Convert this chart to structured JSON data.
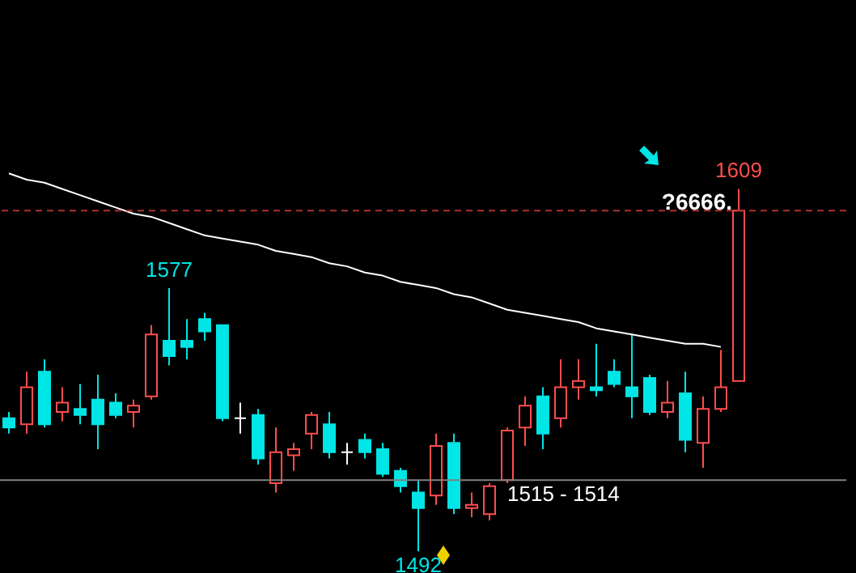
{
  "chart_data": {
    "type": "candlestick",
    "categories": [
      null,
      null,
      null,
      null,
      null,
      null,
      null,
      null,
      null,
      null,
      null,
      null,
      null,
      null,
      null,
      null,
      null,
      null,
      null,
      null,
      null,
      null,
      null,
      null,
      null,
      null,
      null,
      null,
      null,
      null,
      null,
      null,
      null,
      null,
      null,
      null,
      null,
      null,
      null,
      null,
      null,
      null
    ],
    "ohlc": [
      [
        1535,
        1537,
        1530,
        1532
      ],
      [
        1533,
        1550,
        1530,
        1545
      ],
      [
        1550,
        1554,
        1532,
        1533
      ],
      [
        1537,
        1545,
        1534,
        1540
      ],
      [
        1538,
        1546,
        1533,
        1536
      ],
      [
        1541,
        1549,
        1525,
        1533
      ],
      [
        1540,
        1543,
        1535,
        1536
      ],
      [
        1537,
        1541,
        1532,
        1539
      ],
      [
        1542,
        1565,
        1541,
        1562
      ],
      [
        1560,
        1577,
        1552,
        1555
      ],
      [
        1560,
        1567,
        1554,
        1558
      ],
      [
        1567,
        1569,
        1560,
        1563
      ],
      [
        1565,
        1565,
        1534,
        1535
      ],
      [
        1535,
        1540,
        1530,
        1535
      ],
      [
        1536,
        1538,
        1520,
        1522
      ],
      [
        1514,
        1532,
        1511,
        1524
      ],
      [
        1523,
        1527,
        1518,
        1525
      ],
      [
        1530,
        1537,
        1525,
        1536
      ],
      [
        1533,
        1537,
        1522,
        1524
      ],
      [
        1524,
        1527,
        1520,
        1524
      ],
      [
        1528,
        1530,
        1522,
        1524
      ],
      [
        1525,
        1527,
        1516,
        1517
      ],
      [
        1518,
        1519,
        1511,
        1513
      ],
      [
        1511,
        1515,
        1492,
        1506
      ],
      [
        1510,
        1530,
        1507,
        1526
      ],
      [
        1527,
        1530,
        1504,
        1506
      ],
      [
        1506,
        1511,
        1503,
        1507
      ],
      [
        1504,
        1514,
        1502,
        1513
      ],
      [
        1515,
        1532,
        1514,
        1531
      ],
      [
        1532,
        1542,
        1526,
        1539
      ],
      [
        1542,
        1545,
        1525,
        1530
      ],
      [
        1535,
        1554,
        1532,
        1545
      ],
      [
        1545,
        1554,
        1541,
        1547
      ],
      [
        1545,
        1559,
        1542,
        1544
      ],
      [
        1550,
        1554,
        1545,
        1546
      ],
      [
        1545,
        1562,
        1535,
        1542
      ],
      [
        1548,
        1549,
        1536,
        1537
      ],
      [
        1537,
        1547,
        1535,
        1540
      ],
      [
        1543,
        1550,
        1524,
        1528
      ],
      [
        1527,
        1542,
        1519,
        1538
      ],
      [
        1538,
        1557,
        1537,
        1545
      ],
      [
        1547,
        1609,
        1547,
        1602
      ]
    ],
    "colors": [
      "#00e5e5",
      "#ff4d4d",
      "#00e5e5",
      "#ff4d4d",
      "#00e5e5",
      "#00e5e5",
      "#00e5e5",
      "#ff4d4d",
      "#ff4d4d",
      "#00e5e5",
      "#00e5e5",
      "#00e5e5",
      "#00e5e5",
      "#ffffff",
      "#00e5e5",
      "#ff4d4d",
      "#ff4d4d",
      "#ff4d4d",
      "#00e5e5",
      "#ffffff",
      "#00e5e5",
      "#00e5e5",
      "#00e5e5",
      "#00e5e5",
      "#ff4d4d",
      "#00e5e5",
      "#ff4d4d",
      "#ff4d4d",
      "#ff4d4d",
      "#ff4d4d",
      "#00e5e5",
      "#ff4d4d",
      "#ff4d4d",
      "#00e5e5",
      "#00e5e5",
      "#00e5e5",
      "#00e5e5",
      "#ff4d4d",
      "#00e5e5",
      "#ff4d4d",
      "#ff4d4d",
      "#ff4d4d"
    ],
    "series": [
      {
        "type": "line",
        "color": "#ffffff",
        "values": [
          1614,
          1612,
          1611,
          1609,
          1607,
          1605,
          1603,
          1601,
          1600,
          1598,
          1596,
          1594,
          1593,
          1592,
          1591,
          1589,
          1588,
          1587,
          1585,
          1584,
          1582,
          1581,
          1579,
          1578,
          1577,
          1575,
          1574,
          1572,
          1570,
          1569,
          1568,
          1567,
          1566,
          1564,
          1563,
          1562,
          1561,
          1560,
          1559,
          1559,
          1558,
          null
        ]
      }
    ],
    "ylim": [
      1485,
      1670
    ],
    "grid": false,
    "ref_lines": [
      {
        "axis": "y",
        "value": 1602,
        "color": "#b03030",
        "line_style": "dashed"
      },
      {
        "axis": "y",
        "value": 1515,
        "label": "1515 - 1514",
        "color": "#808080",
        "line_style": "solid"
      }
    ],
    "annotations": [
      {
        "text": "1577",
        "y": 1577
      },
      {
        "text": "1609",
        "y": 1609
      },
      {
        "text": "1492",
        "y": 1492
      },
      "?6666."
    ]
  }
}
